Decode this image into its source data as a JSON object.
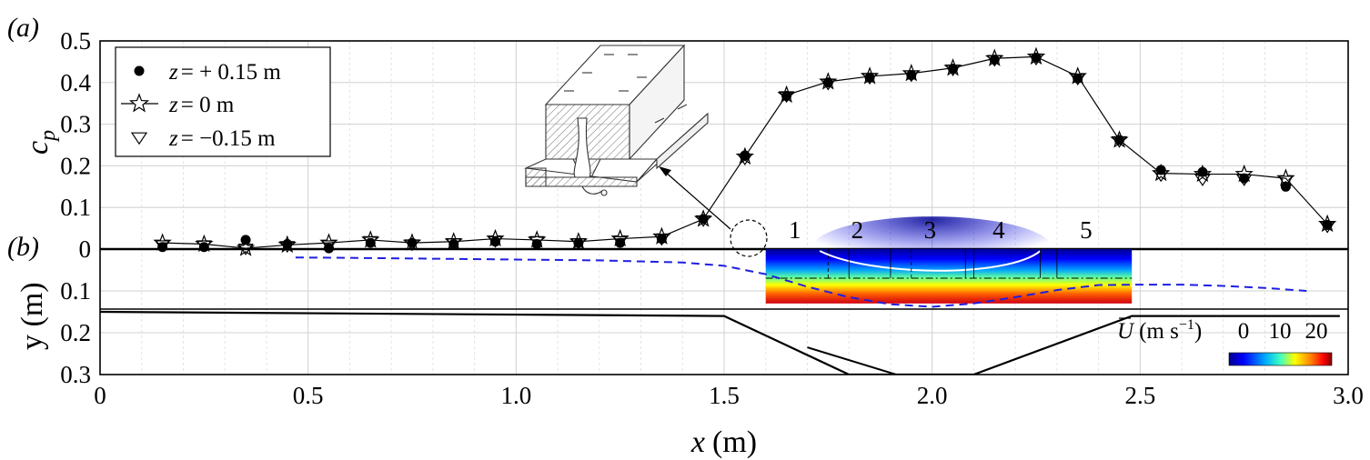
{
  "chart_data": [
    {
      "panel": "(a)",
      "type": "line",
      "ylabel_symbol": "c",
      "ylabel_sub": "p",
      "ylim": [
        0,
        0.5
      ],
      "yticks": [
        "0.5",
        "0.4",
        "0.3",
        "0.2",
        "0.1",
        "0"
      ],
      "xlim": [
        0,
        3.0
      ],
      "grid": true,
      "legend_position": "top-left",
      "series": [
        {
          "name": "z = + 0.15 m",
          "legend_prefix": "z",
          "legend_suffix": "= + 0.15 m",
          "marker": "filled-circle",
          "x": [
            0.15,
            0.25,
            0.35,
            0.45,
            0.55,
            0.65,
            0.75,
            0.85,
            0.95,
            1.05,
            1.15,
            1.25,
            1.35,
            1.45,
            1.55,
            1.65,
            1.75,
            1.85,
            1.95,
            2.05,
            2.15,
            2.25,
            2.35,
            2.45,
            2.55,
            2.65,
            2.75,
            2.85,
            2.95
          ],
          "y": [
            0.005,
            0.005,
            0.022,
            0.012,
            0.002,
            0.015,
            0.015,
            0.012,
            0.018,
            0.012,
            0.015,
            0.015,
            0.025,
            0.072,
            0.225,
            0.368,
            0.4,
            0.412,
            0.418,
            0.433,
            0.455,
            0.46,
            0.41,
            0.262,
            0.19,
            0.185,
            0.17,
            0.15,
            0.058
          ]
        },
        {
          "name": "z = 0 m",
          "legend_prefix": "z",
          "legend_suffix": "= 0 m",
          "marker": "open-star",
          "line": true,
          "x": [
            0.15,
            0.25,
            0.35,
            0.45,
            0.55,
            0.65,
            0.75,
            0.85,
            0.95,
            1.05,
            1.15,
            1.25,
            1.35,
            1.45,
            1.55,
            1.65,
            1.75,
            1.85,
            1.95,
            2.05,
            2.15,
            2.25,
            2.35,
            2.45,
            2.55,
            2.65,
            2.75,
            2.85,
            2.95
          ],
          "y": [
            0.015,
            0.012,
            0.002,
            0.01,
            0.015,
            0.022,
            0.015,
            0.018,
            0.025,
            0.022,
            0.018,
            0.025,
            0.03,
            0.072,
            0.222,
            0.37,
            0.402,
            0.415,
            0.422,
            0.435,
            0.458,
            0.462,
            0.415,
            0.262,
            0.182,
            0.18,
            0.18,
            0.17,
            0.06
          ]
        },
        {
          "name": "z = −0.15 m",
          "legend_prefix": "z",
          "legend_suffix": "= −0.15 m",
          "marker": "open-triangle-down",
          "x": [
            0.15,
            0.25,
            0.35,
            0.45,
            0.55,
            0.65,
            0.75,
            0.85,
            0.95,
            1.05,
            1.15,
            1.25,
            1.35,
            1.45,
            1.55,
            1.65,
            1.75,
            1.85,
            1.95,
            2.05,
            2.15,
            2.25,
            2.35,
            2.45,
            2.55,
            2.65,
            2.75,
            2.85,
            2.95
          ],
          "y": [
            0.01,
            0.01,
            0.002,
            0.008,
            0.01,
            0.02,
            0.012,
            0.015,
            0.02,
            0.02,
            0.015,
            0.02,
            0.025,
            0.07,
            0.218,
            0.368,
            0.398,
            0.412,
            0.418,
            0.432,
            0.455,
            0.458,
            0.41,
            0.26,
            0.178,
            0.168,
            0.168,
            0.165,
            0.055
          ]
        }
      ]
    },
    {
      "panel": "(b)",
      "type": "line",
      "ylabel": "y (m)",
      "xlabel_symbol": "x",
      "xlabel_unit": "(m)",
      "ylim": [
        0,
        0.3
      ],
      "yticks": [
        "0",
        "0.1",
        "0.2",
        "0.3"
      ],
      "xlim": [
        0,
        3.0
      ],
      "xticks": [
        "0",
        "0.5",
        "1.0",
        "1.5",
        "2.0",
        "2.5",
        "3.0"
      ],
      "grid": true,
      "channel_boundary": {
        "x": [
          0,
          1.5,
          1.8,
          2.1,
          2.48,
          2.98
        ],
        "y": [
          0.15,
          0.16,
          0.3,
          0.3,
          0.16,
          0.16
        ]
      },
      "surface_profile_dashed": {
        "x": [
          0.47,
          0.6,
          0.8,
          1.0,
          1.2,
          1.4,
          1.5,
          1.6,
          1.7,
          1.8,
          1.9,
          2.0,
          2.1,
          2.2,
          2.3,
          2.4,
          2.5,
          2.6,
          2.7,
          2.8,
          2.9
        ],
        "y": [
          0.02,
          0.021,
          0.023,
          0.025,
          0.027,
          0.032,
          0.04,
          0.06,
          0.09,
          0.115,
          0.132,
          0.138,
          0.13,
          0.115,
          0.098,
          0.086,
          0.085,
          0.085,
          0.088,
          0.093,
          0.1
        ]
      },
      "colormap_region": {
        "x": [
          1.6,
          2.48
        ],
        "y": [
          0,
          0.13
        ]
      },
      "section_labels": [
        "1",
        "2",
        "3",
        "4",
        "5"
      ],
      "section_label_x": [
        1.67,
        1.82,
        1.995,
        2.16,
        2.37
      ],
      "colorbar": {
        "label_symbol": "U",
        "label_unit_prefix": "(m s",
        "label_unit_exp": "−1",
        "label_unit_suffix": ")",
        "ticks": [
          "0",
          "10",
          "20"
        ],
        "colors": [
          "#00008f",
          "#0000ff",
          "#00b0ff",
          "#40ffc0",
          "#ffff00",
          "#ff7f00",
          "#ff0000",
          "#800000"
        ]
      }
    }
  ]
}
